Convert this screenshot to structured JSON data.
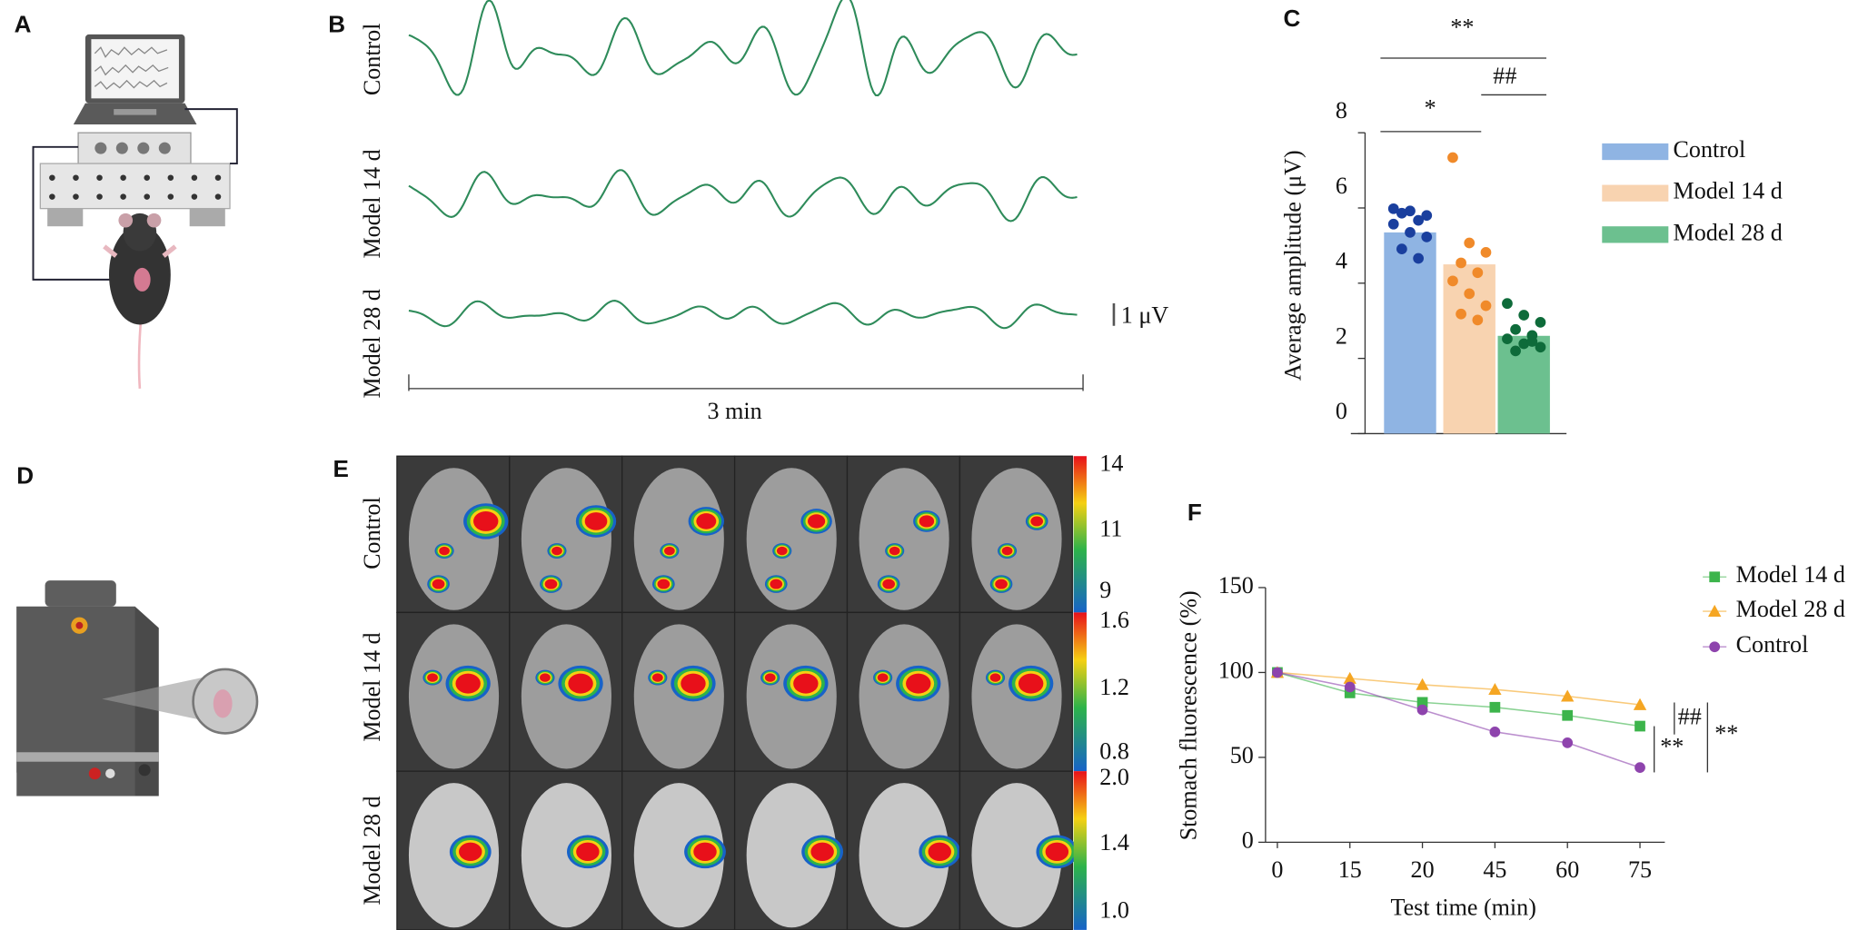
{
  "panel_labels": [
    "A",
    "B",
    "C",
    "D",
    "E",
    "F"
  ],
  "panel_b": {
    "rows": [
      "Control",
      "Model 14 d",
      "Model 28 d"
    ],
    "scale_label": "1 μV",
    "time_label": "3 min"
  },
  "panel_e": {
    "rows": [
      "Control",
      "Model 14 d",
      "Model 28 d"
    ],
    "colorbars": [
      [
        "14",
        "11",
        "9"
      ],
      [
        "1.6",
        "1.2",
        "0.8"
      ],
      [
        "2.0",
        "1.4",
        "1.0"
      ]
    ]
  },
  "chart_data": [
    {
      "type": "bar",
      "ylabel": "Average amplitude (μV)",
      "categories": [
        "Control",
        "Model 14 d",
        "Model 28 d"
      ],
      "values": [
        5.35,
        4.5,
        2.6
      ],
      "colors": [
        "#8fb4e3",
        "#f8d3b0",
        "#6cc08f"
      ],
      "dot_colors": [
        "#1a3f9e",
        "#f08a2a",
        "#0e6b3a"
      ],
      "points": [
        [
          5.98,
          5.92,
          5.8,
          5.86,
          5.67,
          5.57,
          5.35,
          5.23,
          4.91,
          4.66
        ],
        [
          7.34,
          5.07,
          4.82,
          4.54,
          4.28,
          4.06,
          3.72,
          3.4,
          3.18,
          3.02
        ],
        [
          3.46,
          3.15,
          2.96,
          2.77,
          2.61,
          2.52,
          2.39,
          2.3,
          2.2,
          2.45
        ]
      ],
      "ylim": [
        0,
        8
      ],
      "yticks": [
        0,
        2,
        4,
        6,
        8
      ],
      "annotations": [
        "**",
        "##",
        "*"
      ]
    },
    {
      "type": "line",
      "xlabel": "Test time (min)",
      "ylabel": "Stomach fluorescence (%)",
      "categories": [
        "0",
        "15",
        "20",
        "45",
        "60",
        "75"
      ],
      "series": [
        {
          "name": "Model 14 d",
          "color": "#3cb44b",
          "marker": "square",
          "values": [
            100,
            88,
            82.4,
            79.5,
            74.7,
            68.4
          ]
        },
        {
          "name": "Model 28 d",
          "color": "#f5a623",
          "marker": "triangle",
          "values": [
            100,
            96.5,
            92.8,
            90,
            86,
            81
          ]
        },
        {
          "name": "Control",
          "color": "#8e44ad",
          "marker": "circle",
          "values": [
            100,
            91.4,
            78,
            65,
            58.6,
            44
          ]
        }
      ],
      "ylim": [
        0,
        150
      ],
      "yticks": [
        0,
        50,
        100,
        150
      ],
      "annotations": [
        "##",
        "**",
        "**"
      ]
    }
  ]
}
